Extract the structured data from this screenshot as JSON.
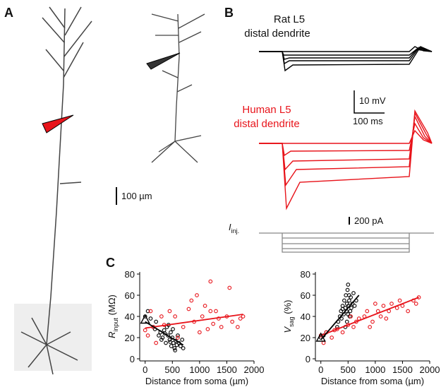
{
  "panels": {
    "A": {
      "label": "A",
      "scale_bar": "100 µm"
    },
    "B": {
      "label": "B",
      "rat_title": [
        "Rat L5",
        "distal dendrite"
      ],
      "human_title": [
        "Human L5",
        "distal dendrite"
      ],
      "voltage_scale": "10 mV",
      "time_scale": "100 ms",
      "current_scale": "200 pA",
      "current_label": {
        "main": "I",
        "sub": "inj."
      }
    },
    "C": {
      "label": "C"
    }
  },
  "chart_data": [
    {
      "type": "scatter",
      "xlabel": "Distance from soma (µm)",
      "ylabel": {
        "main": "R",
        "sub": "input",
        "unit": " (MΩ)"
      },
      "xlim": [
        -100,
        2000
      ],
      "ylim": [
        0,
        80
      ],
      "xticks": [
        0,
        500,
        1000,
        1500,
        2000
      ],
      "yticks": [
        0,
        20,
        40,
        60,
        80
      ],
      "series": [
        {
          "color": "#000000",
          "marker": "circle",
          "x": [
            0,
            50,
            100,
            150,
            180,
            200,
            250,
            280,
            300,
            320,
            350,
            380,
            400,
            420,
            450,
            470,
            480,
            500,
            520,
            540,
            560,
            580,
            600,
            620,
            650,
            680,
            700,
            430,
            510,
            550,
            360,
            460
          ],
          "values": [
            40,
            45,
            38,
            30,
            28,
            35,
            22,
            25,
            18,
            20,
            27,
            15,
            30,
            22,
            18,
            25,
            12,
            20,
            15,
            10,
            17,
            13,
            22,
            15,
            12,
            18,
            10,
            32,
            28,
            8,
            24,
            16
          ]
        },
        {
          "color": "#e8141b",
          "marker": "circle",
          "x": [
            0,
            50,
            100,
            150,
            200,
            300,
            350,
            450,
            550,
            600,
            700,
            800,
            900,
            950,
            1000,
            1050,
            1100,
            1150,
            1200,
            1250,
            1300,
            1350,
            1400,
            1500,
            1550,
            1600,
            1700,
            1750,
            1800,
            850,
            1200
          ],
          "values": [
            27,
            22,
            45,
            30,
            15,
            40,
            32,
            45,
            40,
            20,
            30,
            47,
            35,
            60,
            25,
            40,
            50,
            28,
            73,
            33,
            45,
            38,
            30,
            40,
            67,
            35,
            30,
            38,
            40,
            55,
            45
          ]
        },
        {
          "color": "#e8141b",
          "marker": "line",
          "x": [
            0,
            1800
          ],
          "values": [
            29,
            42
          ]
        },
        {
          "color": "#000000",
          "marker": "line",
          "x": [
            0,
            700
          ],
          "values": [
            35,
            13
          ]
        },
        {
          "color": "#000000",
          "marker": "triangle",
          "x": [
            0
          ],
          "values": [
            37
          ]
        }
      ]
    },
    {
      "type": "scatter",
      "xlabel": "Distance from soma (µm)",
      "ylabel": {
        "main": "V",
        "sub": "sag",
        "unit": " (%)"
      },
      "xlim": [
        -100,
        2000
      ],
      "ylim": [
        0,
        80
      ],
      "xticks": [
        0,
        500,
        1000,
        1500,
        2000
      ],
      "yticks": [
        0,
        20,
        40,
        60,
        80
      ],
      "series": [
        {
          "color": "#000000",
          "marker": "circle",
          "x": [
            0,
            50,
            100,
            300,
            320,
            350,
            370,
            380,
            400,
            420,
            430,
            450,
            460,
            470,
            480,
            490,
            500,
            510,
            520,
            530,
            550,
            560,
            580,
            600,
            620,
            650,
            450,
            480,
            500,
            400,
            520,
            540
          ],
          "values": [
            20,
            22,
            25,
            30,
            35,
            40,
            45,
            38,
            50,
            42,
            55,
            48,
            60,
            45,
            52,
            65,
            70,
            50,
            55,
            40,
            58,
            48,
            52,
            62,
            50,
            55,
            30,
            35,
            42,
            47,
            60,
            45
          ]
        },
        {
          "color": "#e8141b",
          "marker": "circle",
          "x": [
            0,
            50,
            100,
            200,
            300,
            400,
            500,
            600,
            650,
            700,
            800,
            850,
            900,
            950,
            1000,
            1050,
            1100,
            1150,
            1200,
            1250,
            1300,
            1400,
            1450,
            1500,
            1600,
            1700,
            1750,
            1800,
            250,
            550
          ],
          "values": [
            22,
            15,
            25,
            20,
            28,
            25,
            32,
            30,
            35,
            38,
            40,
            45,
            30,
            35,
            52,
            45,
            40,
            50,
            38,
            45,
            52,
            48,
            55,
            50,
            45,
            55,
            52,
            58,
            27,
            40
          ]
        },
        {
          "color": "#e8141b",
          "marker": "line",
          "x": [
            0,
            1800
          ],
          "values": [
            22,
            58
          ]
        },
        {
          "color": "#000000",
          "marker": "line",
          "x": [
            0,
            700
          ],
          "values": [
            18,
            60
          ]
        },
        {
          "color": "#000000",
          "marker": "triangle",
          "x": [
            0
          ],
          "values": [
            20
          ]
        }
      ]
    }
  ]
}
